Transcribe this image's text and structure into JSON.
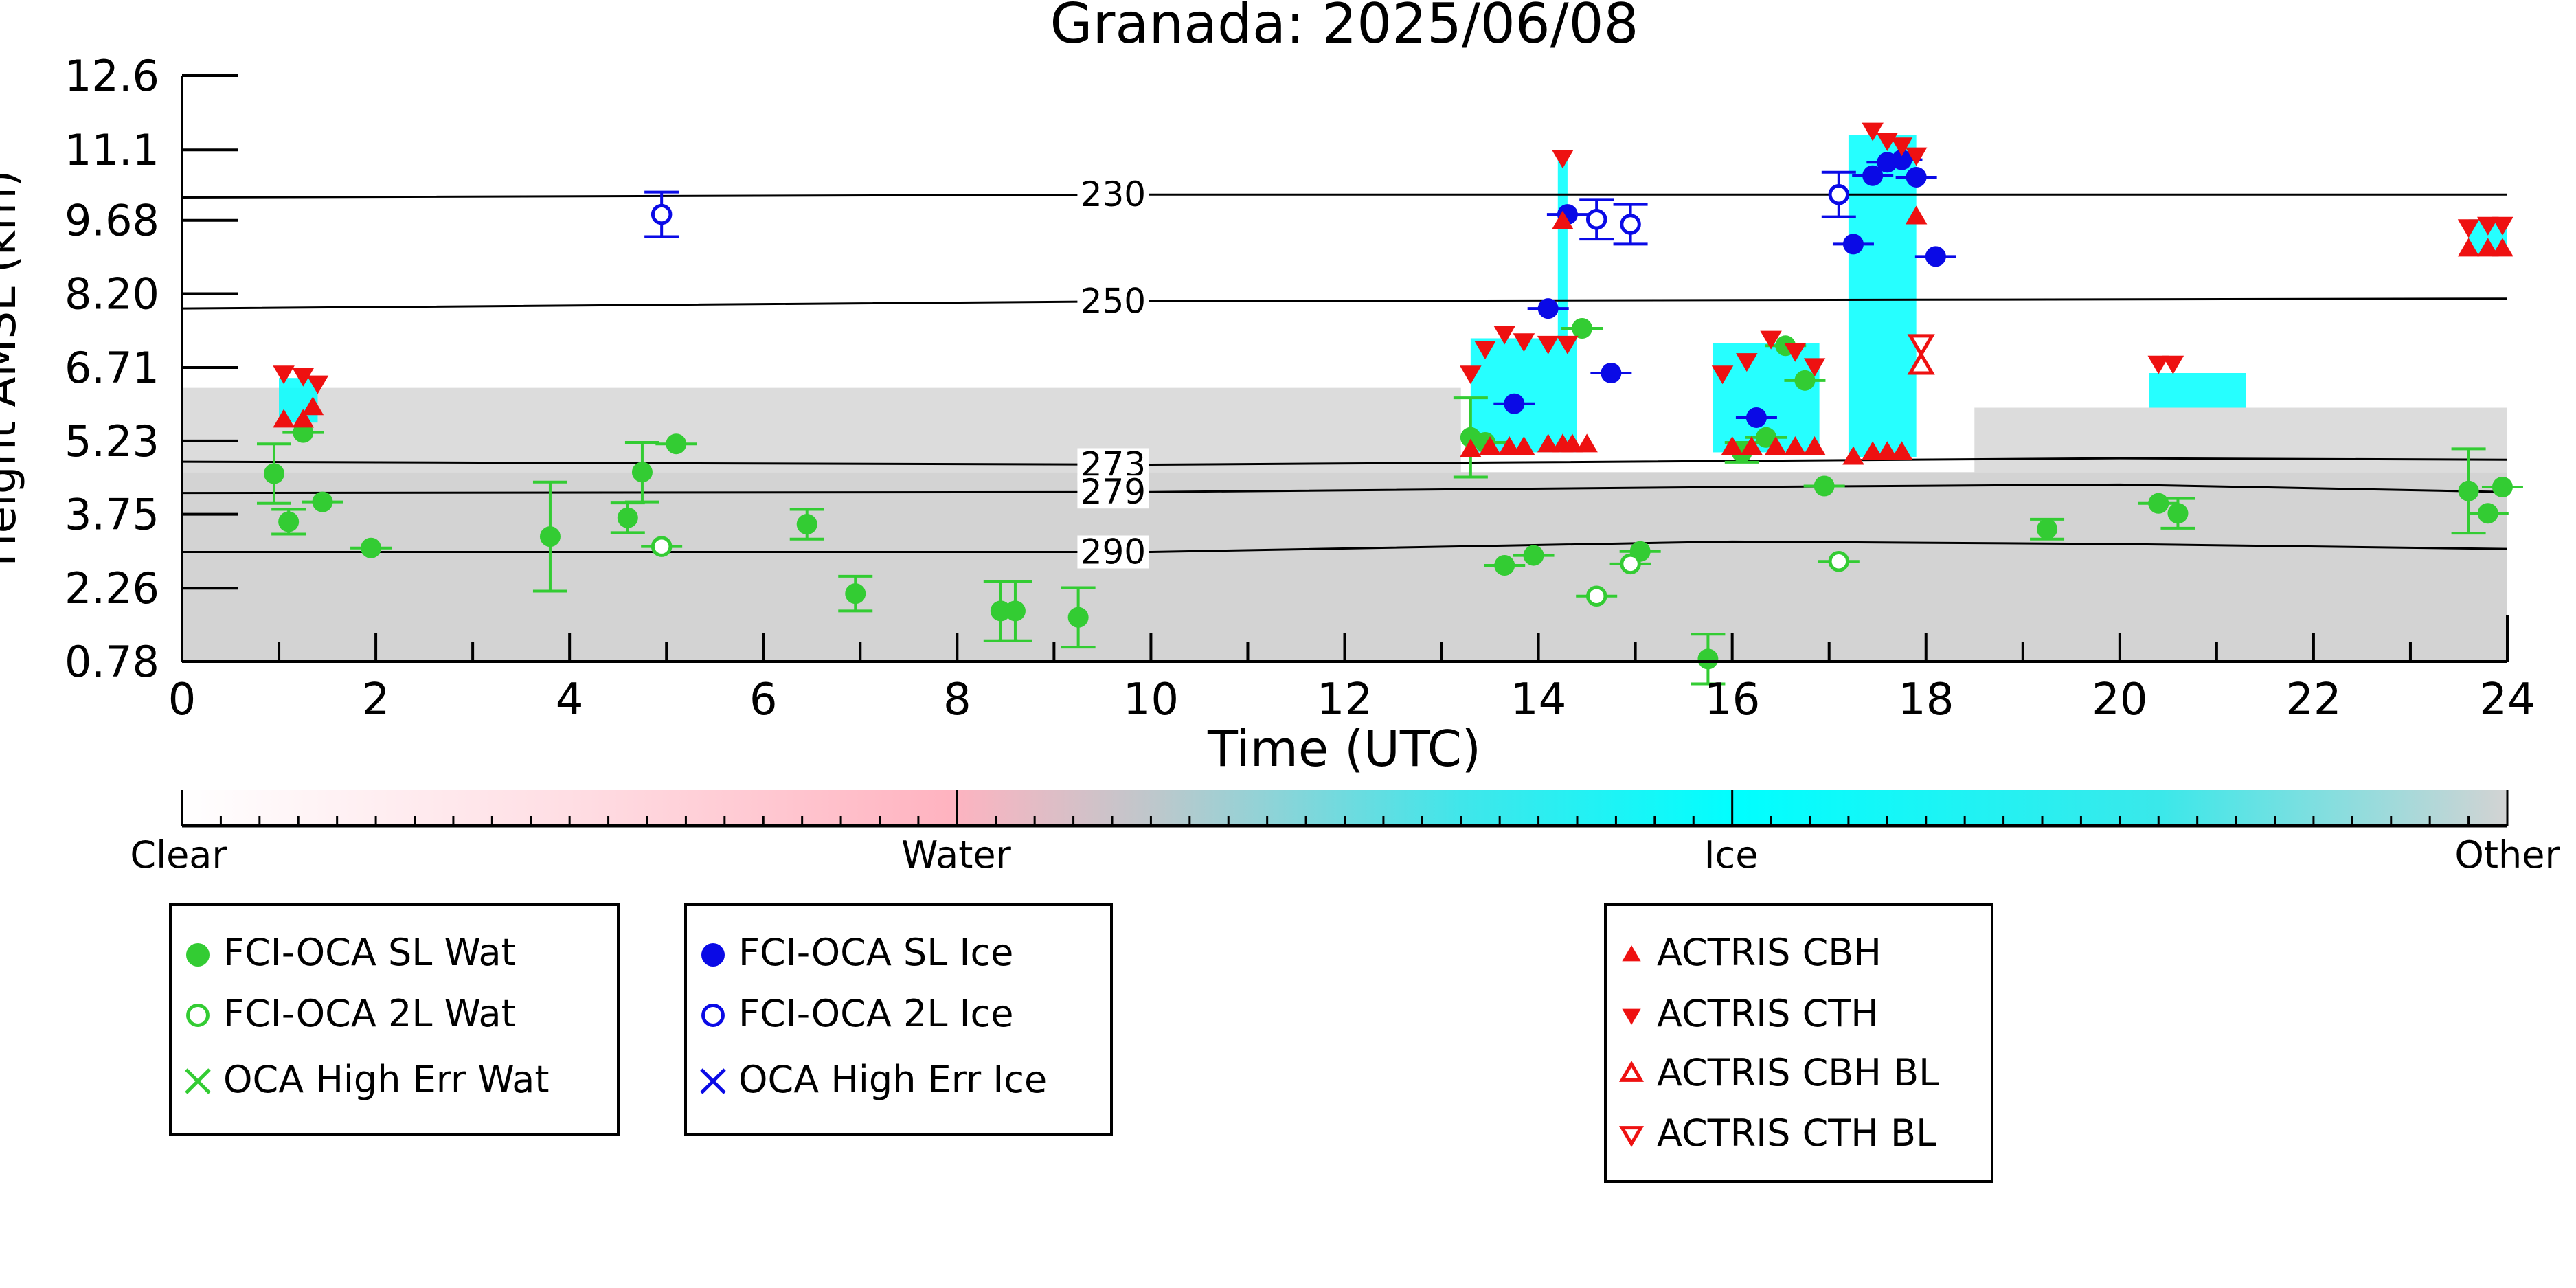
{
  "chart_data": {
    "type": "scatter",
    "title": "Granada: 2025/06/08",
    "xlabel": "Time (UTC)",
    "ylabel": "Height AMSL (km)",
    "xlim": [
      0,
      24
    ],
    "ylim": [
      0.78,
      12.6
    ],
    "x_ticks": [
      "0",
      "2",
      "4",
      "6",
      "8",
      "10",
      "12",
      "14",
      "16",
      "18",
      "20",
      "22",
      "24"
    ],
    "y_ticks": [
      "0.78",
      "2.26",
      "3.75",
      "5.23",
      "6.71",
      "8.20",
      "9.68",
      "11.1",
      "12.6"
    ],
    "grid": false,
    "colorbar": {
      "labels": [
        "Clear",
        "Water",
        "Ice",
        "Other"
      ],
      "colors": [
        "#ffffff",
        "#ffb3c0",
        "#00ffff",
        "#d3d3d3"
      ]
    },
    "isotherms": [
      {
        "label": "230",
        "points": [
          [
            0,
            10.14
          ],
          [
            10,
            10.2
          ],
          [
            24,
            10.2
          ]
        ]
      },
      {
        "label": "250",
        "points": [
          [
            0,
            7.9
          ],
          [
            10,
            8.05
          ],
          [
            24,
            8.1
          ]
        ]
      },
      {
        "label": "273",
        "points": [
          [
            0,
            4.81
          ],
          [
            10,
            4.75
          ],
          [
            14,
            4.8
          ],
          [
            20,
            4.88
          ],
          [
            24,
            4.85
          ]
        ]
      },
      {
        "label": "279",
        "points": [
          [
            0,
            4.18
          ],
          [
            10,
            4.2
          ],
          [
            16,
            4.3
          ],
          [
            20,
            4.35
          ],
          [
            24,
            4.2
          ]
        ]
      },
      {
        "label": "290",
        "points": [
          [
            0,
            2.99
          ],
          [
            10,
            2.99
          ],
          [
            16,
            3.2
          ],
          [
            20,
            3.15
          ],
          [
            24,
            3.05
          ]
        ]
      }
    ],
    "background_fill": [
      {
        "class": "Other",
        "color": "#d3d3d3",
        "x0": 0,
        "x1": 24,
        "y0": 0.78,
        "y1": 4.6
      },
      {
        "class": "Other",
        "color": "#dcdcdc",
        "x0": 0,
        "x1": 13.2,
        "y0": 4.6,
        "y1": 6.3
      },
      {
        "class": "Other",
        "color": "#dcdcdc",
        "x0": 18.5,
        "x1": 24,
        "y0": 4.6,
        "y1": 5.9
      },
      {
        "class": "Ice",
        "color": "#00ffff",
        "x0": 1.0,
        "x1": 1.4,
        "y0": 5.6,
        "y1": 6.5
      },
      {
        "class": "Ice",
        "color": "#00ffff",
        "x0": 13.3,
        "x1": 14.4,
        "y0": 5.0,
        "y1": 7.3
      },
      {
        "class": "Ice",
        "color": "#00ffff",
        "x0": 14.2,
        "x1": 14.3,
        "y0": 7.3,
        "y1": 11.1
      },
      {
        "class": "Ice",
        "color": "#00ffff",
        "x0": 15.8,
        "x1": 16.9,
        "y0": 5.0,
        "y1": 7.2
      },
      {
        "class": "Ice",
        "color": "#00ffff",
        "x0": 17.2,
        "x1": 17.9,
        "y0": 4.9,
        "y1": 11.4
      },
      {
        "class": "Ice",
        "color": "#00ffff",
        "x0": 20.3,
        "x1": 21.3,
        "y0": 5.9,
        "y1": 6.6
      },
      {
        "class": "Ice",
        "color": "#00ffff",
        "x0": 23.6,
        "x1": 24.0,
        "y0": 9.0,
        "y1": 9.7
      }
    ],
    "series": [
      {
        "name": "FCI-OCA SL Wat",
        "color": "#33cc33",
        "marker": "filled-circle",
        "points": [
          {
            "x": 0.95,
            "y": 4.57,
            "err": 0.6
          },
          {
            "x": 1.1,
            "y": 3.6,
            "err": 0.25
          },
          {
            "x": 1.25,
            "y": 5.4
          },
          {
            "x": 1.45,
            "y": 4.0
          },
          {
            "x": 1.95,
            "y": 3.07
          },
          {
            "x": 3.8,
            "y": 3.3,
            "err": 1.1
          },
          {
            "x": 4.6,
            "y": 3.68,
            "err": 0.3
          },
          {
            "x": 4.75,
            "y": 4.6,
            "err": 0.6
          },
          {
            "x": 5.1,
            "y": 5.17
          },
          {
            "x": 6.45,
            "y": 3.55,
            "err": 0.3
          },
          {
            "x": 6.95,
            "y": 2.15,
            "err": 0.35
          },
          {
            "x": 8.45,
            "y": 1.8,
            "err": 0.6
          },
          {
            "x": 8.6,
            "y": 1.8,
            "err": 0.6
          },
          {
            "x": 9.25,
            "y": 1.67,
            "err": 0.6
          },
          {
            "x": 13.3,
            "y": 5.3,
            "err": 0.8
          },
          {
            "x": 13.45,
            "y": 5.2
          },
          {
            "x": 13.65,
            "y": 2.72
          },
          {
            "x": 13.95,
            "y": 2.92
          },
          {
            "x": 14.45,
            "y": 7.5
          },
          {
            "x": 15.05,
            "y": 3.0
          },
          {
            "x": 15.75,
            "y": 0.83,
            "err": 0.5
          },
          {
            "x": 16.1,
            "y": 5.0,
            "err": 0.2
          },
          {
            "x": 16.35,
            "y": 5.3
          },
          {
            "x": 16.55,
            "y": 7.15
          },
          {
            "x": 16.75,
            "y": 6.45
          },
          {
            "x": 16.95,
            "y": 4.32
          },
          {
            "x": 19.25,
            "y": 3.45,
            "err": 0.2
          },
          {
            "x": 20.4,
            "y": 3.97
          },
          {
            "x": 20.6,
            "y": 3.77,
            "err": 0.3
          },
          {
            "x": 23.6,
            "y": 4.22,
            "err": 0.85
          },
          {
            "x": 23.8,
            "y": 3.77
          },
          {
            "x": 23.95,
            "y": 4.3
          }
        ]
      },
      {
        "name": "FCI-OCA 2L Wat",
        "color": "#33cc33",
        "marker": "open-circle",
        "points": [
          {
            "x": 4.95,
            "y": 3.1
          },
          {
            "x": 14.6,
            "y": 2.1
          },
          {
            "x": 14.95,
            "y": 2.75
          },
          {
            "x": 17.1,
            "y": 2.8
          }
        ]
      },
      {
        "name": "OCA High Err Wat",
        "color": "#33cc33",
        "marker": "x",
        "points": []
      },
      {
        "name": "FCI-OCA SL Ice",
        "color": "#0a0ae6",
        "marker": "filled-circle",
        "points": [
          {
            "x": 13.75,
            "y": 5.98
          },
          {
            "x": 14.1,
            "y": 7.9
          },
          {
            "x": 14.75,
            "y": 6.6
          },
          {
            "x": 16.25,
            "y": 5.7
          },
          {
            "x": 17.25,
            "y": 9.2
          },
          {
            "x": 17.45,
            "y": 10.58
          },
          {
            "x": 17.6,
            "y": 10.85
          },
          {
            "x": 17.75,
            "y": 10.9
          },
          {
            "x": 17.9,
            "y": 10.55
          },
          {
            "x": 18.1,
            "y": 8.95
          },
          {
            "x": 14.3,
            "y": 9.8
          }
        ]
      },
      {
        "name": "FCI-OCA 2L Ice",
        "color": "#0a0ae6",
        "marker": "open-circle",
        "points": [
          {
            "x": 4.95,
            "y": 9.8,
            "err": 0.45
          },
          {
            "x": 14.6,
            "y": 9.7,
            "err": 0.4
          },
          {
            "x": 14.95,
            "y": 9.6,
            "err": 0.4
          },
          {
            "x": 17.1,
            "y": 10.2,
            "err": 0.45
          }
        ]
      },
      {
        "name": "OCA High Err Ice",
        "color": "#0a0ae6",
        "marker": "x",
        "points": []
      },
      {
        "name": "ACTRIS CBH",
        "color": "#ee1111",
        "marker": "triangle-up",
        "points": [
          {
            "x": 1.05,
            "y": 5.65
          },
          {
            "x": 1.25,
            "y": 5.65
          },
          {
            "x": 1.35,
            "y": 5.9
          },
          {
            "x": 13.3,
            "y": 5.05
          },
          {
            "x": 13.5,
            "y": 5.1
          },
          {
            "x": 13.7,
            "y": 5.1
          },
          {
            "x": 13.85,
            "y": 5.1
          },
          {
            "x": 14.1,
            "y": 5.15
          },
          {
            "x": 14.25,
            "y": 5.15
          },
          {
            "x": 14.35,
            "y": 5.15
          },
          {
            "x": 14.5,
            "y": 5.15
          },
          {
            "x": 14.25,
            "y": 9.65
          },
          {
            "x": 16.0,
            "y": 5.1
          },
          {
            "x": 16.2,
            "y": 5.1
          },
          {
            "x": 16.45,
            "y": 5.1
          },
          {
            "x": 16.65,
            "y": 5.1
          },
          {
            "x": 16.85,
            "y": 5.1
          },
          {
            "x": 17.25,
            "y": 4.9
          },
          {
            "x": 17.45,
            "y": 5.0
          },
          {
            "x": 17.6,
            "y": 5.0
          },
          {
            "x": 17.75,
            "y": 5.0
          },
          {
            "x": 17.9,
            "y": 9.75
          },
          {
            "x": 23.6,
            "y": 9.1
          },
          {
            "x": 23.8,
            "y": 9.1
          },
          {
            "x": 23.95,
            "y": 9.1
          }
        ]
      },
      {
        "name": "ACTRIS CTH",
        "color": "#ee1111",
        "marker": "triangle-down",
        "points": [
          {
            "x": 1.05,
            "y": 6.6
          },
          {
            "x": 1.25,
            "y": 6.55
          },
          {
            "x": 1.4,
            "y": 6.4
          },
          {
            "x": 13.3,
            "y": 6.6
          },
          {
            "x": 13.45,
            "y": 7.1
          },
          {
            "x": 13.65,
            "y": 7.4
          },
          {
            "x": 13.85,
            "y": 7.25
          },
          {
            "x": 14.1,
            "y": 7.2
          },
          {
            "x": 14.3,
            "y": 7.2
          },
          {
            "x": 14.25,
            "y": 10.95
          },
          {
            "x": 15.9,
            "y": 6.6
          },
          {
            "x": 16.15,
            "y": 6.85
          },
          {
            "x": 16.4,
            "y": 7.3
          },
          {
            "x": 16.65,
            "y": 7.05
          },
          {
            "x": 16.85,
            "y": 6.75
          },
          {
            "x": 17.45,
            "y": 11.5
          },
          {
            "x": 17.6,
            "y": 11.3
          },
          {
            "x": 17.75,
            "y": 11.2
          },
          {
            "x": 17.9,
            "y": 11.0
          },
          {
            "x": 20.4,
            "y": 6.8
          },
          {
            "x": 20.55,
            "y": 6.8
          },
          {
            "x": 23.6,
            "y": 9.55
          },
          {
            "x": 23.8,
            "y": 9.6
          },
          {
            "x": 23.95,
            "y": 9.6
          }
        ]
      },
      {
        "name": "ACTRIS CBH BL",
        "color": "#ee1111",
        "marker": "open-triangle-up",
        "points": [
          {
            "x": 17.95,
            "y": 6.75
          }
        ]
      },
      {
        "name": "ACTRIS CTH BL",
        "color": "#ee1111",
        "marker": "open-triangle-down",
        "points": [
          {
            "x": 17.95,
            "y": 7.2
          }
        ]
      }
    ]
  }
}
